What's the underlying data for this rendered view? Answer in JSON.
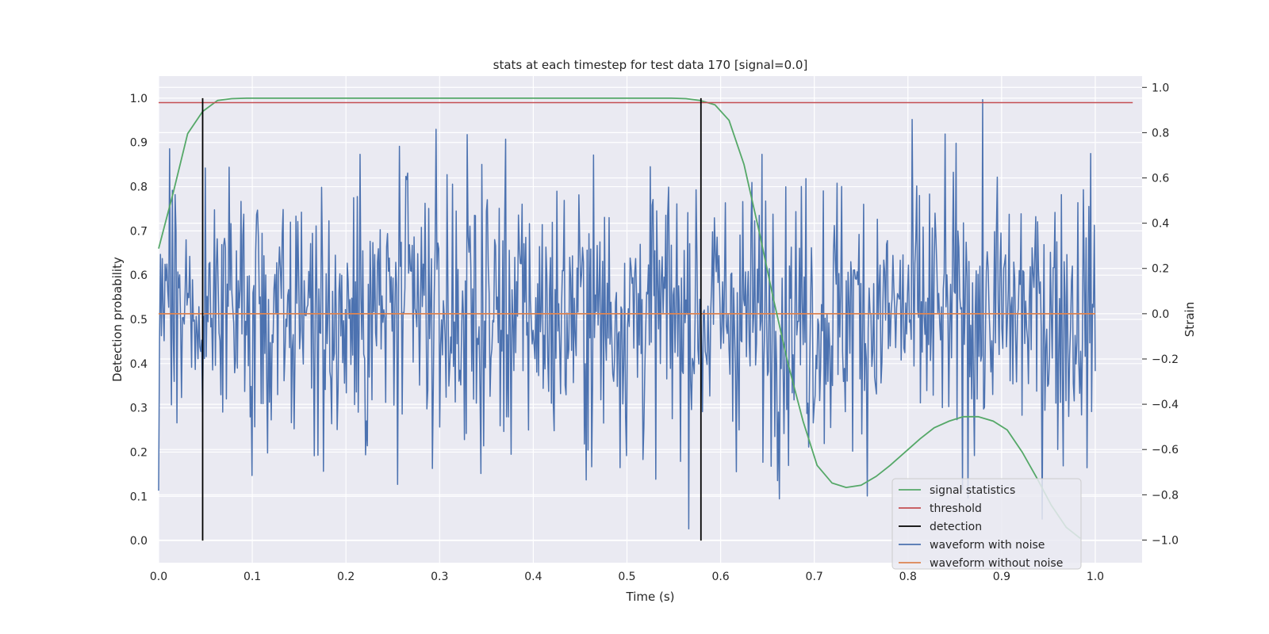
{
  "chart_data": {
    "type": "line",
    "title": "stats at each timestep for test data 170 [signal=0.0]",
    "xlabel": "Time (s)",
    "ylabel_left": "Detection probability",
    "ylabel_right": "Strain",
    "xlim": [
      0.0,
      1.05
    ],
    "ylim_left": [
      -0.05,
      1.05
    ],
    "ylim_right": [
      -1.1,
      1.05
    ],
    "xticks": [
      "0.0",
      "0.1",
      "0.2",
      "0.3",
      "0.4",
      "0.5",
      "0.6",
      "0.7",
      "0.8",
      "0.9",
      "1.0"
    ],
    "yticks_left": [
      "0.0",
      "0.1",
      "0.2",
      "0.3",
      "0.4",
      "0.5",
      "0.6",
      "0.7",
      "0.8",
      "0.9",
      "1.0"
    ],
    "yticks_right": [
      "−1.0",
      "−0.8",
      "−0.6",
      "−0.4",
      "−0.2",
      "0.0",
      "0.2",
      "0.4",
      "0.6",
      "0.8",
      "1.0"
    ],
    "grid": true,
    "legend_position": "lower-right",
    "series": [
      {
        "name": "signal statistics",
        "color": "#55a868",
        "axis": "left",
        "x": [
          0.0,
          0.016,
          0.031,
          0.047,
          0.063,
          0.078,
          0.094,
          0.5,
          0.547,
          0.563,
          0.578,
          0.594,
          0.609,
          0.625,
          0.641,
          0.656,
          0.672,
          0.688,
          0.703,
          0.719,
          0.734,
          0.75,
          0.766,
          0.781,
          0.797,
          0.813,
          0.828,
          0.844,
          0.859,
          0.875,
          0.891,
          0.906,
          0.922,
          0.938,
          0.953,
          0.969,
          0.984
        ],
        "y": [
          0.66,
          0.79,
          0.92,
          0.97,
          0.995,
          0.999,
          1.0,
          1.0,
          1.0,
          0.999,
          0.995,
          0.985,
          0.95,
          0.85,
          0.7,
          0.55,
          0.4,
          0.27,
          0.17,
          0.13,
          0.12,
          0.125,
          0.145,
          0.17,
          0.2,
          0.23,
          0.255,
          0.27,
          0.28,
          0.28,
          0.27,
          0.25,
          0.2,
          0.14,
          0.08,
          0.03,
          0.005
        ]
      },
      {
        "name": "threshold",
        "color": "#c44e52",
        "axis": "left",
        "value": 0.99,
        "x_range": [
          0.0,
          1.04
        ]
      },
      {
        "name": "detection",
        "color": "#000000",
        "axis": "left",
        "x_positions": [
          0.047,
          0.579
        ],
        "y_range": [
          0.0,
          1.0
        ]
      },
      {
        "name": "waveform with noise",
        "color": "#4c72b0",
        "axis": "right",
        "x_range": [
          0.0,
          1.0
        ],
        "amplitude": 0.3,
        "min": -1.0,
        "max": 0.97
      },
      {
        "name": "waveform without noise",
        "color": "#dd8452",
        "axis": "right",
        "value": 0.0,
        "x_range": [
          0.0,
          1.0
        ]
      }
    ]
  }
}
